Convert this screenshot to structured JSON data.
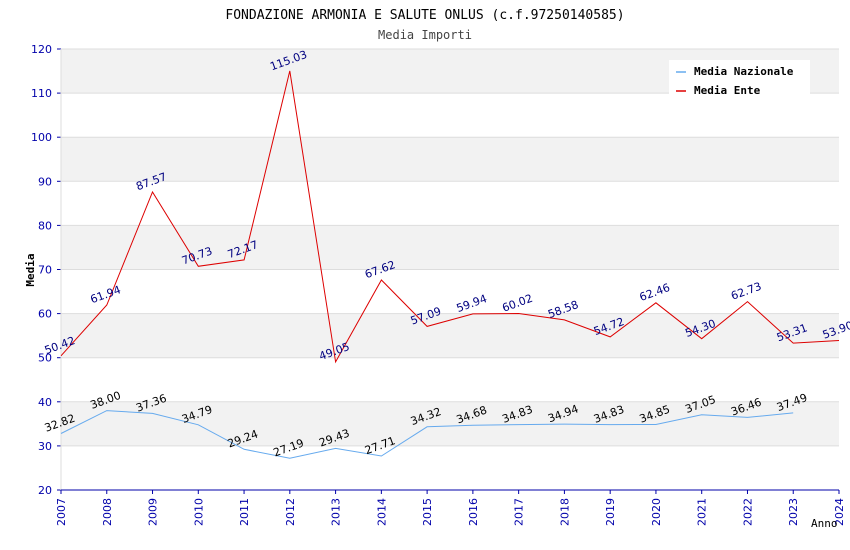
{
  "chart_data": {
    "type": "line",
    "title": "FONDAZIONE ARMONIA E SALUTE ONLUS (c.f.97250140585)",
    "subtitle": "Media Importi",
    "xlabel": "Anno",
    "ylabel": "Media",
    "ylim": [
      20,
      120
    ],
    "yticks": [
      20,
      30,
      40,
      50,
      60,
      70,
      80,
      90,
      100,
      110,
      120
    ],
    "x": [
      "2007",
      "2008",
      "2009",
      "2010",
      "2011",
      "2012",
      "2013",
      "2014",
      "2015",
      "2016",
      "2017",
      "2018",
      "2019",
      "2020",
      "2021",
      "2022",
      "2023",
      "2024"
    ],
    "series": [
      {
        "name": "Media Nazionale",
        "color": "#66aaee",
        "label_color": "#000000",
        "values": [
          32.82,
          38.0,
          37.36,
          34.79,
          29.24,
          27.19,
          29.43,
          27.71,
          34.32,
          34.68,
          34.83,
          34.94,
          34.83,
          34.85,
          37.05,
          36.46,
          37.49,
          null
        ],
        "labels": [
          "32.82",
          "38.00",
          "37.36",
          "34.79",
          "29.24",
          "27.19",
          "29.43",
          "27.71",
          "34.32",
          "34.68",
          "34.83",
          "34.94",
          "34.83",
          "34.85",
          "37.05",
          "36.46",
          "37.49",
          ""
        ]
      },
      {
        "name": "Media Ente",
        "color": "#dd0000",
        "label_color": "#000080",
        "values": [
          50.42,
          61.94,
          87.57,
          70.73,
          72.17,
          115.03,
          49.05,
          67.62,
          57.09,
          59.94,
          60.02,
          58.58,
          54.72,
          62.46,
          54.3,
          62.73,
          53.31,
          53.9
        ],
        "labels": [
          "50.42",
          "61.94",
          "87.57",
          "70.73",
          "72.17",
          "115.03",
          "49.05",
          "67.62",
          "57.09",
          "59.94",
          "60.02",
          "58.58",
          "54.72",
          "62.46",
          "54.30",
          "62.73",
          "53.31",
          "53.90"
        ]
      }
    ],
    "grid": true,
    "legend_position": "top-right",
    "axis_color": "#0000aa",
    "band_color": "#f2f2f2"
  }
}
